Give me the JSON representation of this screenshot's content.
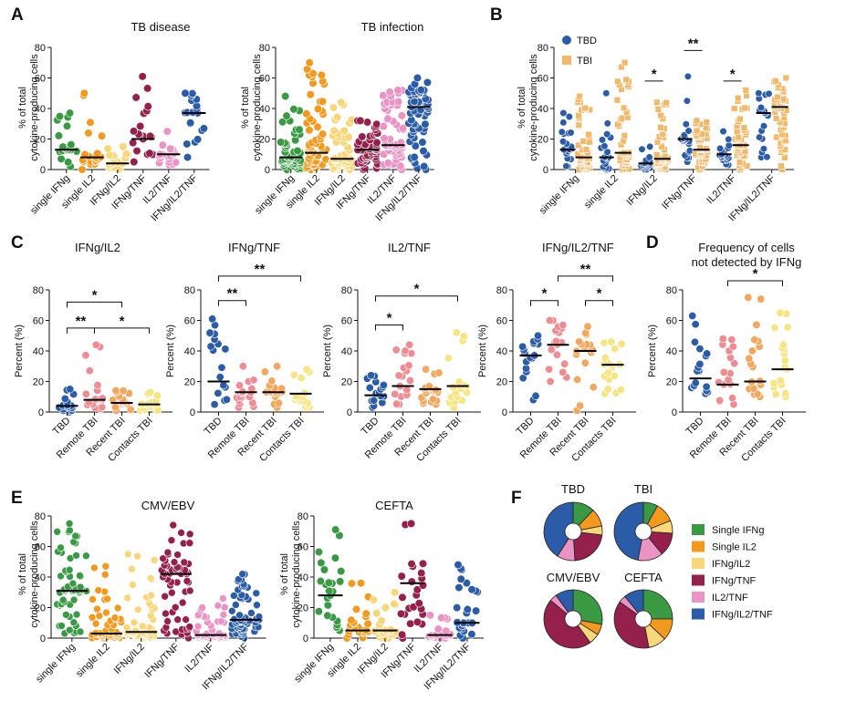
{
  "chart_data": {
    "type": "scatter",
    "colors": {
      "single_ifng": "#3a9a44",
      "single_il2": "#f39a1e",
      "ifng_il2": "#f7d77a",
      "ifng_tnf": "#96204c",
      "il2_tnf": "#ea93c4",
      "ifng_il2_tnf": "#2b5ca8",
      "tbd": "#2b5ca8",
      "tbi": "#f3b96a",
      "remote": "#ee8c92",
      "recent": "#f3a65d",
      "contacts": "#f6e583"
    },
    "panels": {
      "A": {
        "label": "A",
        "ylabel": [
          "% of total",
          "cytokine-producing cells"
        ],
        "yticks": [
          "0",
          "20",
          "40",
          "60",
          "80"
        ],
        "ylim": [
          0,
          80
        ],
        "categories": [
          "single IFNg",
          "single IL2",
          "IFNg/IL2",
          "IFNg/TNF",
          "IL2/TNF",
          "IFNg/IL2/TNF"
        ],
        "left": {
          "title": "TB disease",
          "medians": [
            13,
            8,
            4,
            20,
            10,
            37
          ],
          "n": 20,
          "spread": [
            [
              2,
              37
            ],
            [
              0,
              50
            ],
            [
              0,
              15
            ],
            [
              5,
              61
            ],
            [
              3,
              25
            ],
            [
              8,
              50
            ]
          ]
        },
        "right": {
          "title": "TB infection",
          "medians": [
            8,
            11,
            7,
            13,
            16,
            41
          ],
          "n": 60,
          "spread": [
            [
              0,
              48
            ],
            [
              0,
              70
            ],
            [
              0,
              44
            ],
            [
              0,
              32
            ],
            [
              0,
              52
            ],
            [
              0,
              60
            ]
          ]
        }
      },
      "B": {
        "label": "B",
        "ylabel": [
          "% of total",
          "cytokine-producing cells"
        ],
        "yticks": [
          "0",
          "20",
          "40",
          "60",
          "80"
        ],
        "ylim": [
          0,
          80
        ],
        "categories": [
          "single IFNg",
          "single IL2",
          "IFNg/IL2",
          "IFNg/TNF",
          "IL2/TNF",
          "IFNg/IL2/TNF"
        ],
        "legend": [
          "TBD",
          "TBI"
        ],
        "tbd_medians": [
          13,
          8,
          4,
          20,
          10,
          37
        ],
        "tbi_medians": [
          8,
          11,
          7,
          13,
          16,
          41
        ],
        "significance": [
          {
            "category": "IFNg/IL2",
            "stars": "*"
          },
          {
            "category": "IFNg/TNF",
            "stars": "**"
          },
          {
            "category": "IL2/TNF",
            "stars": "*"
          }
        ]
      },
      "C": {
        "label": "C",
        "ylabel": "Percent (%)",
        "yticks": [
          "0",
          "20",
          "40",
          "60",
          "80"
        ],
        "ylim": [
          0,
          80
        ],
        "groups": [
          "TBD",
          "Remote TBI",
          "Recent TBI",
          "Contacts TBI"
        ],
        "subpanels": [
          {
            "title": "IFNg/IL2",
            "medians": [
              4,
              8,
              6,
              5
            ],
            "spread": [
              [
                0,
                15
              ],
              [
                2,
                44
              ],
              [
                1,
                14
              ],
              [
                1,
                13
              ]
            ],
            "brackets": [
              {
                "from": 0,
                "to": 2,
                "stars": "*",
                "y": 72
              },
              {
                "from": 0,
                "to": 1,
                "stars": "**",
                "y": 55
              },
              {
                "from": 1,
                "to": 3,
                "stars": "*",
                "y": 55
              }
            ]
          },
          {
            "title": "IFNg/TNF",
            "medians": [
              20,
              13,
              13,
              12
            ],
            "spread": [
              [
                5,
                61
              ],
              [
                3,
                30
              ],
              [
                3,
                30
              ],
              [
                3,
                28
              ]
            ],
            "brackets": [
              {
                "from": 0,
                "to": 3,
                "stars": "**",
                "y": 89
              },
              {
                "from": 0,
                "to": 1,
                "stars": "**",
                "y": 73
              }
            ]
          },
          {
            "title": "IL2/TNF",
            "medians": [
              11,
              17,
              15,
              17
            ],
            "spread": [
              [
                3,
                24
              ],
              [
                5,
                44
              ],
              [
                5,
                28
              ],
              [
                3,
                52
              ]
            ],
            "brackets": [
              {
                "from": 0,
                "to": 3,
                "stars": "*",
                "y": 76
              },
              {
                "from": 0,
                "to": 1,
                "stars": "*",
                "y": 57
              }
            ]
          },
          {
            "title": "IFNg/IL2/TNF",
            "medians": [
              37,
              44,
              40,
              31
            ],
            "spread": [
              [
                8,
                50
              ],
              [
                20,
                60
              ],
              [
                1,
                56
              ],
              [
                12,
                46
              ]
            ],
            "brackets": [
              {
                "from": 0,
                "to": 1,
                "stars": "*",
                "y": 73
              },
              {
                "from": 1,
                "to": 3,
                "stars": "**",
                "y": 89
              },
              {
                "from": 2,
                "to": 3,
                "stars": "*",
                "y": 73
              }
            ]
          }
        ]
      },
      "D": {
        "label": "D",
        "title": [
          "Frequency of cells",
          "not detected by IFNg"
        ],
        "ylabel": "Percent (%)",
        "yticks": [
          "0",
          "20",
          "40",
          "60",
          "80"
        ],
        "ylim": [
          0,
          80
        ],
        "groups": [
          "TBD",
          "Remote TBI",
          "Recent TBI",
          "Contacts TBI"
        ],
        "medians": [
          22,
          18,
          20,
          28
        ],
        "spread": [
          [
            12,
            63
          ],
          [
            5,
            48
          ],
          [
            10,
            75
          ],
          [
            10,
            65
          ]
        ],
        "brackets": [
          {
            "from": 1,
            "to": 3,
            "stars": "*",
            "y": 86
          }
        ]
      },
      "E": {
        "label": "E",
        "ylabel": [
          "% of total",
          "cytokine-producing cells"
        ],
        "yticks": [
          "0",
          "20",
          "40",
          "60",
          "80"
        ],
        "ylim": [
          0,
          80
        ],
        "categories": [
          "single IFNg",
          "single IL2",
          "IFNg/IL2",
          "IFNg/TNF",
          "IL2/TNF",
          "IFNg/IL2/TNF"
        ],
        "left": {
          "title": "CMV/EBV",
          "medians": [
            31,
            3,
            4,
            42,
            2,
            12
          ],
          "n": 60,
          "spread": [
            [
              3,
              75
            ],
            [
              0,
              47
            ],
            [
              0,
              55
            ],
            [
              0,
              74
            ],
            [
              0,
              26
            ],
            [
              0,
              42
            ]
          ]
        },
        "right": {
          "title": "CEFTA",
          "medians": [
            28,
            5,
            5,
            36,
            2,
            10
          ],
          "n": 25,
          "spread": [
            [
              5,
              71
            ],
            [
              0,
              36
            ],
            [
              0,
              30
            ],
            [
              0,
              75
            ],
            [
              0,
              15
            ],
            [
              0,
              48
            ]
          ]
        }
      },
      "F": {
        "label": "F",
        "pies": [
          {
            "title": "TBD",
            "values": [
              12,
              10,
              5,
              22,
              10,
              41
            ]
          },
          {
            "title": "TBI",
            "values": [
              8,
              11,
              7,
              13,
              14,
              47
            ]
          },
          {
            "title": "CMV/EBV",
            "values": [
              28,
              6,
              6,
              46,
              4,
              10
            ]
          },
          {
            "title": "CEFTA",
            "values": [
              25,
              12,
              10,
              38,
              4,
              11
            ]
          }
        ],
        "legend": [
          "Single IFNg",
          "Single IL2",
          "IFNg/IL2",
          "IFNg/TNF",
          "IL2/TNF",
          "IFNg/IL2/TNF"
        ]
      }
    }
  }
}
